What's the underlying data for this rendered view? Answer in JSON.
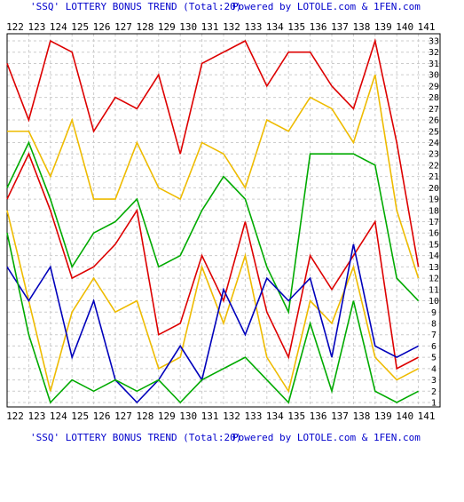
{
  "header": {
    "title_left": "'SSQ' LOTTERY BONUS TREND (Total:20)",
    "title_right": "Powered by LOTOLE.com & 1FEN.com"
  },
  "footer": {
    "title_left": "'SSQ' LOTTERY BONUS TREND (Total:20)",
    "title_right": "Powered by LOTOLE.com & 1FEN.com"
  },
  "chart_data": {
    "type": "line",
    "x": [
      "122",
      "123",
      "124",
      "125",
      "126",
      "127",
      "128",
      "129",
      "130",
      "131",
      "132",
      "133",
      "134",
      "135",
      "136",
      "137",
      "138",
      "139",
      "140",
      "141"
    ],
    "ylim": [
      1,
      33
    ],
    "y_ticks": [
      1,
      2,
      3,
      4,
      5,
      6,
      7,
      8,
      9,
      10,
      11,
      12,
      13,
      14,
      15,
      16,
      17,
      18,
      19,
      20,
      21,
      22,
      23,
      24,
      25,
      26,
      27,
      28,
      29,
      30,
      31,
      32,
      33
    ],
    "grid": true,
    "series": [
      {
        "color": "#dd0000",
        "values": [
          31,
          26,
          33,
          32,
          25,
          28,
          27,
          30,
          23,
          31,
          32,
          33,
          29,
          32,
          32,
          29,
          27,
          33,
          24,
          13
        ]
      },
      {
        "color": "#eebb00",
        "values": [
          25,
          25,
          21,
          26,
          19,
          19,
          24,
          20,
          19,
          24,
          23,
          20,
          26,
          25,
          28,
          27,
          24,
          30,
          18,
          12
        ]
      },
      {
        "color": "#00aa00",
        "values": [
          20,
          24,
          19,
          13,
          16,
          17,
          19,
          13,
          14,
          18,
          21,
          19,
          13,
          9,
          23,
          23,
          23,
          22,
          12,
          10
        ]
      },
      {
        "color": "#dd0000",
        "values": [
          19,
          23,
          18,
          12,
          13,
          15,
          18,
          7,
          8,
          14,
          10,
          17,
          9,
          5,
          14,
          11,
          14,
          17,
          4,
          5
        ]
      },
      {
        "color": "#eebb00",
        "values": [
          18,
          10,
          2,
          9,
          12,
          9,
          10,
          4,
          5,
          13,
          8,
          14,
          5,
          2,
          10,
          8,
          13,
          5,
          3,
          4
        ]
      },
      {
        "color": "#0000bb",
        "values": [
          13,
          10,
          13,
          5,
          10,
          3,
          1,
          3,
          6,
          3,
          11,
          7,
          12,
          10,
          12,
          5,
          15,
          6,
          5,
          6
        ]
      },
      {
        "color": "#00aa00",
        "values": [
          16,
          7,
          1,
          3,
          2,
          3,
          2,
          3,
          1,
          3,
          4,
          5,
          3,
          1,
          8,
          2,
          10,
          2,
          1,
          2
        ]
      }
    ]
  }
}
